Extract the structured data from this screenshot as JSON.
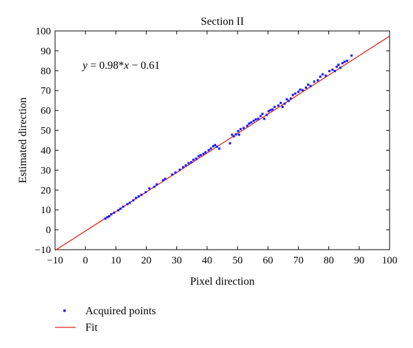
{
  "chart_data": {
    "type": "scatter",
    "title": "Section II",
    "xlabel": "Pixel direction",
    "ylabel": "Estimated direction",
    "xlim": [
      -10,
      100
    ],
    "ylim": [
      -10,
      100
    ],
    "xticks": [
      -10,
      0,
      10,
      20,
      30,
      40,
      50,
      60,
      70,
      80,
      90,
      100
    ],
    "yticks": [
      -10,
      0,
      10,
      20,
      30,
      40,
      50,
      60,
      70,
      80,
      90,
      100
    ],
    "xtick_labels": [
      "−10",
      "0",
      "10",
      "20",
      "30",
      "40",
      "50",
      "60",
      "70",
      "80",
      "90",
      "100"
    ],
    "ytick_labels": [
      "−10",
      "0",
      "10",
      "20",
      "30",
      "40",
      "50",
      "60",
      "70",
      "80",
      "90",
      "100"
    ],
    "annotation": {
      "y_var": "y",
      "rest": " = 0.98*",
      "x_var": "x",
      "tail": " − 0.61"
    },
    "grid": false,
    "legend_position": "below",
    "series": [
      {
        "name": "Acquired points",
        "kind": "scatter",
        "color": "#1a1aff",
        "points": [
          [
            6.5,
            5.6
          ],
          [
            7.2,
            6.3
          ],
          [
            7.8,
            6.8
          ],
          [
            8.5,
            7.8
          ],
          [
            9.4,
            8.6
          ],
          [
            10.8,
            9.8
          ],
          [
            11.5,
            10.6
          ],
          [
            12.4,
            11.6
          ],
          [
            13.8,
            12.9
          ],
          [
            14.6,
            13.6
          ],
          [
            15.7,
            14.8
          ],
          [
            16.6,
            16.0
          ],
          [
            17.5,
            16.8
          ],
          [
            18.4,
            17.6
          ],
          [
            19.8,
            18.9
          ],
          [
            21.0,
            20.8
          ],
          [
            22.6,
            21.6
          ],
          [
            23.4,
            22.8
          ],
          [
            25.5,
            24.9
          ],
          [
            26.2,
            25.6
          ],
          [
            28.5,
            27.8
          ],
          [
            29.6,
            28.8
          ],
          [
            31.0,
            30.2
          ],
          [
            32.1,
            31.5
          ],
          [
            33.0,
            32.4
          ],
          [
            33.9,
            33.5
          ],
          [
            34.8,
            34.0
          ],
          [
            35.5,
            35.2
          ],
          [
            36.4,
            35.8
          ],
          [
            37.2,
            37.0
          ],
          [
            37.9,
            37.5
          ],
          [
            38.8,
            38.2
          ],
          [
            39.5,
            39.0
          ],
          [
            40.5,
            40.0
          ],
          [
            41.2,
            40.9
          ],
          [
            42.0,
            42.0
          ],
          [
            42.6,
            42.6
          ],
          [
            43.2,
            41.8
          ],
          [
            44.0,
            40.8
          ],
          [
            47.5,
            43.5
          ],
          [
            48.2,
            47.8
          ],
          [
            48.8,
            47.0
          ],
          [
            49.5,
            48.0
          ],
          [
            50.2,
            49.6
          ],
          [
            50.5,
            47.8
          ],
          [
            51.0,
            50.6
          ],
          [
            52.0,
            51.2
          ],
          [
            53.2,
            52.3
          ],
          [
            53.8,
            53.4
          ],
          [
            54.5,
            54.0
          ],
          [
            55.3,
            54.8
          ],
          [
            56.0,
            55.5
          ],
          [
            56.8,
            55.8
          ],
          [
            57.6,
            57.2
          ],
          [
            58.2,
            58.3
          ],
          [
            58.8,
            55.8
          ],
          [
            59.6,
            57.8
          ],
          [
            60.2,
            59.6
          ],
          [
            60.8,
            60.2
          ],
          [
            61.5,
            60.5
          ],
          [
            62.2,
            61.8
          ],
          [
            63.4,
            62.5
          ],
          [
            64.2,
            63.8
          ],
          [
            64.8,
            61.8
          ],
          [
            65.5,
            63.4
          ],
          [
            66.2,
            65.6
          ],
          [
            66.8,
            64.8
          ],
          [
            67.5,
            66.0
          ],
          [
            68.2,
            67.8
          ],
          [
            69.0,
            68.5
          ],
          [
            70.0,
            69.4
          ],
          [
            70.6,
            70.5
          ],
          [
            71.4,
            70.2
          ],
          [
            72.5,
            71.5
          ],
          [
            73.2,
            73.0
          ],
          [
            74.0,
            72.3
          ],
          [
            75.2,
            74.5
          ],
          [
            76.4,
            75.2
          ],
          [
            77.2,
            77.0
          ],
          [
            78.0,
            78.2
          ],
          [
            79.0,
            77.5
          ],
          [
            80.2,
            79.8
          ],
          [
            81.2,
            80.5
          ],
          [
            82.0,
            79.8
          ],
          [
            82.6,
            82.0
          ],
          [
            83.2,
            83.0
          ],
          [
            83.8,
            81.5
          ],
          [
            84.5,
            83.8
          ],
          [
            85.2,
            84.5
          ],
          [
            86.0,
            85.0
          ],
          [
            87.5,
            87.6
          ]
        ]
      },
      {
        "name": "Fit",
        "kind": "line",
        "color": "#e0201a",
        "slope": 0.98,
        "intercept": -0.61,
        "x_range": [
          -10,
          100
        ]
      }
    ]
  }
}
